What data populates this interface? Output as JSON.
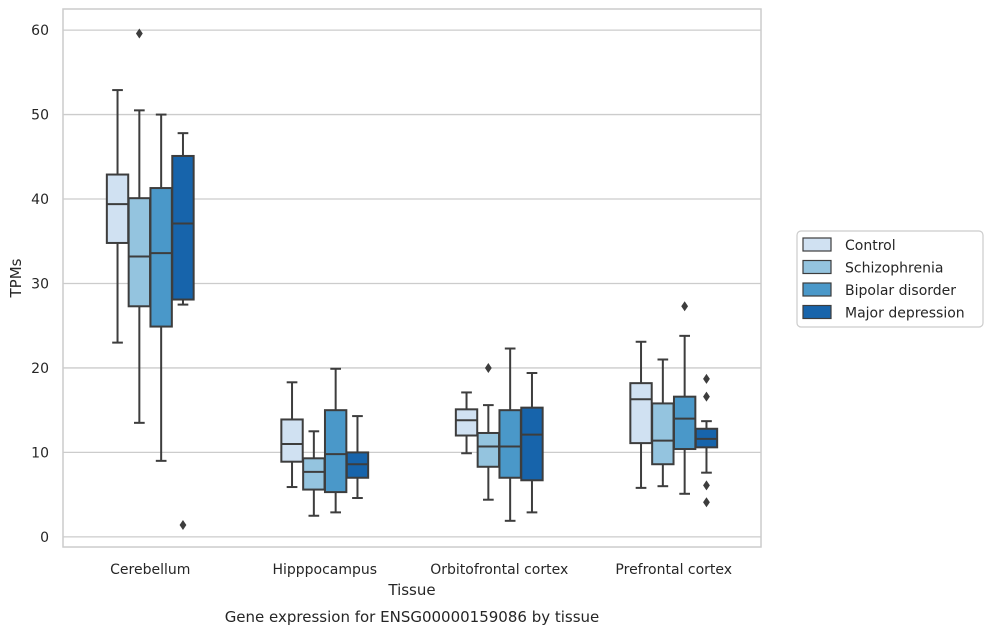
{
  "chart_data": {
    "type": "boxplot",
    "title": "",
    "caption": "Gene expression for ENSG00000159086 by tissue",
    "xlabel": "Tissue",
    "ylabel": "TPMs",
    "ylim": [
      -1.2,
      62.5
    ],
    "yticks": [
      0,
      10,
      20,
      30,
      40,
      50,
      60
    ],
    "grid": "horizontal",
    "legend_position": "right",
    "categories": [
      "Cerebellum",
      "Hipppocampus",
      "Orbitofrontal cortex",
      "Prefrontal cortex"
    ],
    "series": [
      {
        "name": "Control",
        "color": "#d0e1f2",
        "boxes": [
          {
            "whisker_low": 23.0,
            "q1": 34.8,
            "median": 39.4,
            "q3": 42.9,
            "whisker_high": 52.9,
            "outliers": []
          },
          {
            "whisker_low": 5.9,
            "q1": 8.9,
            "median": 11.0,
            "q3": 13.9,
            "whisker_high": 18.3,
            "outliers": []
          },
          {
            "whisker_low": 9.9,
            "q1": 12.0,
            "median": 13.8,
            "q3": 15.1,
            "whisker_high": 17.1,
            "outliers": []
          },
          {
            "whisker_low": 5.8,
            "q1": 11.1,
            "median": 16.3,
            "q3": 18.2,
            "whisker_high": 23.1,
            "outliers": []
          }
        ]
      },
      {
        "name": "Schizophrenia",
        "color": "#94c4df",
        "boxes": [
          {
            "whisker_low": 13.5,
            "q1": 27.3,
            "median": 33.2,
            "q3": 40.1,
            "whisker_high": 50.5,
            "outliers": [
              59.6
            ]
          },
          {
            "whisker_low": 2.5,
            "q1": 5.6,
            "median": 7.7,
            "q3": 9.3,
            "whisker_high": 12.5,
            "outliers": []
          },
          {
            "whisker_low": 4.4,
            "q1": 8.3,
            "median": 10.7,
            "q3": 12.3,
            "whisker_high": 15.6,
            "outliers": [
              20.0
            ]
          },
          {
            "whisker_low": 6.0,
            "q1": 8.6,
            "median": 11.4,
            "q3": 15.8,
            "whisker_high": 21.0,
            "outliers": []
          }
        ]
      },
      {
        "name": "Bipolar disorder",
        "color": "#4a98c9",
        "boxes": [
          {
            "whisker_low": 9.0,
            "q1": 24.9,
            "median": 33.6,
            "q3": 41.3,
            "whisker_high": 50.0,
            "outliers": []
          },
          {
            "whisker_low": 2.9,
            "q1": 5.3,
            "median": 9.8,
            "q3": 15.0,
            "whisker_high": 19.9,
            "outliers": []
          },
          {
            "whisker_low": 1.9,
            "q1": 7.0,
            "median": 10.7,
            "q3": 15.0,
            "whisker_high": 22.3,
            "outliers": []
          },
          {
            "whisker_low": 5.1,
            "q1": 10.4,
            "median": 14.0,
            "q3": 16.6,
            "whisker_high": 23.8,
            "outliers": [
              27.3
            ]
          }
        ]
      },
      {
        "name": "Major depression",
        "color": "#1764ab",
        "boxes": [
          {
            "whisker_low": 27.5,
            "q1": 28.1,
            "median": 37.1,
            "q3": 45.1,
            "whisker_high": 47.8,
            "outliers": [
              1.4
            ]
          },
          {
            "whisker_low": 4.6,
            "q1": 7.0,
            "median": 8.6,
            "q3": 10.0,
            "whisker_high": 14.3,
            "outliers": []
          },
          {
            "whisker_low": 2.9,
            "q1": 6.7,
            "median": 12.1,
            "q3": 15.3,
            "whisker_high": 19.4,
            "outliers": []
          },
          {
            "whisker_low": 7.6,
            "q1": 10.6,
            "median": 11.6,
            "q3": 12.8,
            "whisker_high": 13.7,
            "outliers": [
              18.7,
              16.6,
              6.1,
              4.1
            ]
          }
        ]
      }
    ]
  }
}
